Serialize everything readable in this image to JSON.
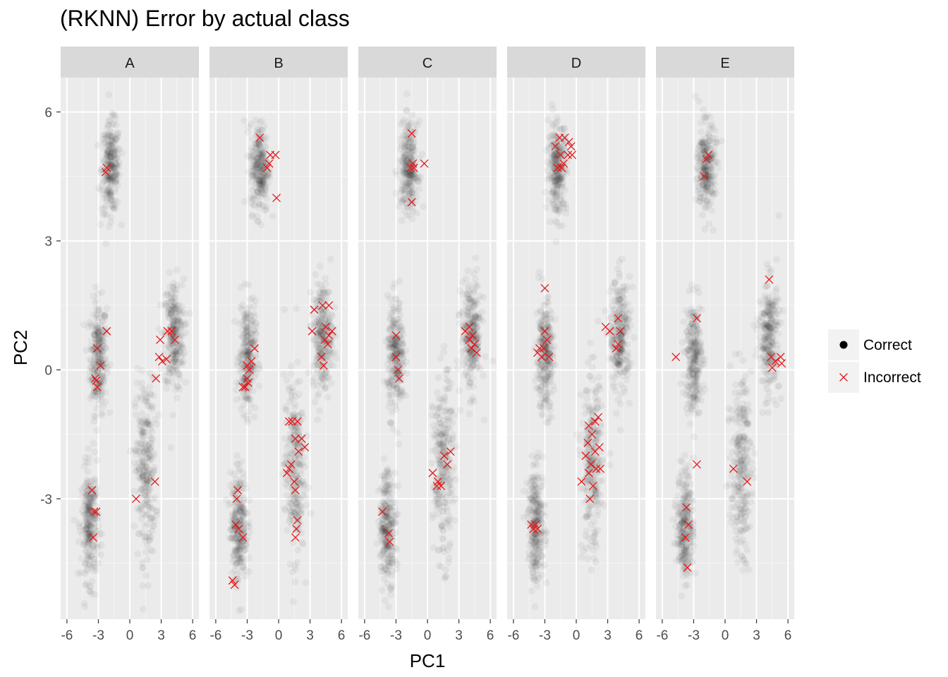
{
  "chart_data": {
    "type": "scatter",
    "title": "(RKNN) Error by actual class",
    "xlabel": "PC1",
    "ylabel": "PC2",
    "xlim": [
      -6.6,
      6.6
    ],
    "ylim": [
      -5.8,
      6.8
    ],
    "xticks": [
      -6,
      -3,
      0,
      3,
      6
    ],
    "xtick_labels": [
      "-6",
      "-3",
      "0",
      "3",
      "6"
    ],
    "yticks": [
      -3,
      0,
      3,
      6
    ],
    "ytick_labels": [
      "-3",
      "0",
      "3",
      "6"
    ],
    "grid": true,
    "legend_position": "right",
    "legend": [
      {
        "name": "Correct",
        "marker": "filled-circle",
        "color": "#000000"
      },
      {
        "name": "Incorrect",
        "marker": "x",
        "color": "#e41a1c"
      }
    ],
    "clusters": [
      {
        "cx": -3.0,
        "cy": 0.3,
        "sx": 0.5,
        "sy": 0.5
      },
      {
        "cx": -1.8,
        "cy": 4.7,
        "sx": 0.55,
        "sy": 0.4
      },
      {
        "cx": 4.2,
        "cy": 0.8,
        "sx": 0.6,
        "sy": 0.5
      },
      {
        "cx": 1.5,
        "cy": -2.3,
        "sx": 0.6,
        "sy": 0.8
      },
      {
        "cx": -3.8,
        "cy": -3.6,
        "sx": 0.5,
        "sy": 0.5
      }
    ],
    "facets": [
      {
        "label": "A",
        "incorrect": [
          [
            -2.2,
            4.7
          ],
          [
            -2.3,
            4.6
          ],
          [
            -3.1,
            0.5
          ],
          [
            -2.2,
            0.9
          ],
          [
            -3.3,
            -0.2
          ],
          [
            -3.1,
            -0.4
          ],
          [
            -2.8,
            0.1
          ],
          [
            -3.2,
            -0.25
          ],
          [
            3.6,
            0.9
          ],
          [
            4.0,
            0.9
          ],
          [
            4.3,
            0.7
          ],
          [
            2.9,
            0.7
          ],
          [
            3.1,
            0.2
          ],
          [
            3.5,
            0.25
          ],
          [
            2.8,
            0.3
          ],
          [
            2.4,
            -2.6
          ],
          [
            2.5,
            -0.2
          ],
          [
            0.6,
            -3.0
          ],
          [
            -3.6,
            -2.8
          ],
          [
            -3.5,
            -3.9
          ],
          [
            -3.4,
            -3.3
          ],
          [
            -3.2,
            -3.3
          ]
        ]
      },
      {
        "label": "B",
        "incorrect": [
          [
            -1.8,
            5.4
          ],
          [
            -0.8,
            5.0
          ],
          [
            -1.1,
            4.7
          ],
          [
            -0.9,
            4.8
          ],
          [
            -0.3,
            5.0
          ],
          [
            -0.2,
            4.0
          ],
          [
            -2.3,
            0.5
          ],
          [
            -3.0,
            0.1
          ],
          [
            -2.8,
            0.0
          ],
          [
            -3.2,
            -0.4
          ],
          [
            -3.4,
            -0.4
          ],
          [
            -2.9,
            -0.3
          ],
          [
            -3.0,
            -0.2
          ],
          [
            -2.6,
            0.2
          ],
          [
            3.4,
            1.4
          ],
          [
            4.2,
            1.5
          ],
          [
            4.8,
            1.5
          ],
          [
            3.2,
            0.9
          ],
          [
            4.5,
            1.0
          ],
          [
            4.8,
            0.8
          ],
          [
            5.1,
            0.9
          ],
          [
            4.4,
            0.7
          ],
          [
            4.7,
            0.6
          ],
          [
            4.1,
            0.3
          ],
          [
            4.3,
            0.1
          ],
          [
            1.0,
            -1.2
          ],
          [
            1.3,
            -1.2
          ],
          [
            1.8,
            -1.2
          ],
          [
            1.6,
            -1.6
          ],
          [
            2.2,
            -1.6
          ],
          [
            2.5,
            -1.8
          ],
          [
            1.9,
            -1.9
          ],
          [
            1.2,
            -2.2
          ],
          [
            1.0,
            -2.3
          ],
          [
            0.8,
            -2.4
          ],
          [
            1.5,
            -2.6
          ],
          [
            1.6,
            -2.8
          ],
          [
            1.8,
            -3.5
          ],
          [
            1.7,
            -3.7
          ],
          [
            1.6,
            -3.9
          ],
          [
            -3.9,
            -2.8
          ],
          [
            -4.0,
            -3.0
          ],
          [
            -4.1,
            -3.6
          ],
          [
            -3.8,
            -3.7
          ],
          [
            -3.4,
            -3.9
          ],
          [
            -4.4,
            -4.9
          ],
          [
            -4.2,
            -5.0
          ]
        ]
      },
      {
        "label": "C",
        "incorrect": [
          [
            -1.5,
            5.5
          ],
          [
            -1.4,
            4.8
          ],
          [
            -1.3,
            4.7
          ],
          [
            -1.6,
            4.7
          ],
          [
            -0.3,
            4.8
          ],
          [
            -1.5,
            3.9
          ],
          [
            -3.0,
            0.8
          ],
          [
            -3.0,
            0.3
          ],
          [
            -2.8,
            0.0
          ],
          [
            -2.7,
            -0.2
          ],
          [
            3.6,
            0.9
          ],
          [
            4.0,
            1.0
          ],
          [
            4.3,
            0.8
          ],
          [
            4.0,
            0.7
          ],
          [
            4.5,
            0.6
          ],
          [
            4.2,
            0.5
          ],
          [
            4.7,
            0.4
          ],
          [
            2.2,
            -1.9
          ],
          [
            1.6,
            -2.0
          ],
          [
            1.9,
            -2.2
          ],
          [
            0.5,
            -2.4
          ],
          [
            1.0,
            -2.6
          ],
          [
            0.9,
            -2.7
          ],
          [
            1.3,
            -2.7
          ],
          [
            -4.3,
            -3.3
          ],
          [
            -3.7,
            -3.8
          ],
          [
            -3.6,
            -4.0
          ]
        ]
      },
      {
        "label": "D",
        "incorrect": [
          [
            -2.0,
            5.2
          ],
          [
            -1.6,
            5.4
          ],
          [
            -1.1,
            5.4
          ],
          [
            -0.5,
            5.2
          ],
          [
            -0.7,
            5.3
          ],
          [
            -1.5,
            5.0
          ],
          [
            -0.8,
            5.0
          ],
          [
            -0.4,
            5.0
          ],
          [
            -1.8,
            4.7
          ],
          [
            -1.4,
            4.7
          ],
          [
            -1.2,
            4.8
          ],
          [
            -3.0,
            1.9
          ],
          [
            -3.0,
            0.9
          ],
          [
            -2.8,
            0.7
          ],
          [
            -3.5,
            0.5
          ],
          [
            -3.7,
            0.4
          ],
          [
            -3.3,
            0.3
          ],
          [
            -2.6,
            0.3
          ],
          [
            -3.1,
            0.5
          ],
          [
            2.8,
            1.0
          ],
          [
            3.2,
            0.9
          ],
          [
            4.0,
            1.2
          ],
          [
            4.2,
            0.9
          ],
          [
            4.0,
            0.6
          ],
          [
            3.8,
            0.5
          ],
          [
            2.1,
            -1.1
          ],
          [
            1.8,
            -1.2
          ],
          [
            1.2,
            -1.3
          ],
          [
            1.5,
            -1.5
          ],
          [
            1.1,
            -1.7
          ],
          [
            2.2,
            -1.8
          ],
          [
            1.8,
            -1.9
          ],
          [
            0.9,
            -2.0
          ],
          [
            1.4,
            -2.2
          ],
          [
            1.9,
            -2.3
          ],
          [
            2.3,
            -2.3
          ],
          [
            1.2,
            -2.4
          ],
          [
            0.5,
            -2.6
          ],
          [
            1.6,
            -2.7
          ],
          [
            1.3,
            -3.0
          ],
          [
            -4.3,
            -3.6
          ],
          [
            -4.1,
            -3.7
          ],
          [
            -3.9,
            -3.6
          ],
          [
            -3.7,
            -3.7
          ]
        ]
      },
      {
        "label": "E",
        "incorrect": [
          [
            -1.6,
            5.0
          ],
          [
            -1.8,
            4.9
          ],
          [
            -2.0,
            4.5
          ],
          [
            -2.7,
            1.2
          ],
          [
            -4.7,
            0.3
          ],
          [
            4.2,
            2.1
          ],
          [
            4.4,
            0.3
          ],
          [
            4.8,
            0.2
          ],
          [
            5.3,
            0.3
          ],
          [
            5.4,
            0.15
          ],
          [
            4.5,
            0.05
          ],
          [
            0.8,
            -2.3
          ],
          [
            2.1,
            -2.6
          ],
          [
            -2.7,
            -2.2
          ],
          [
            -3.7,
            -3.2
          ],
          [
            -3.5,
            -3.6
          ],
          [
            -3.8,
            -3.9
          ],
          [
            -3.6,
            -4.6
          ]
        ]
      }
    ]
  }
}
